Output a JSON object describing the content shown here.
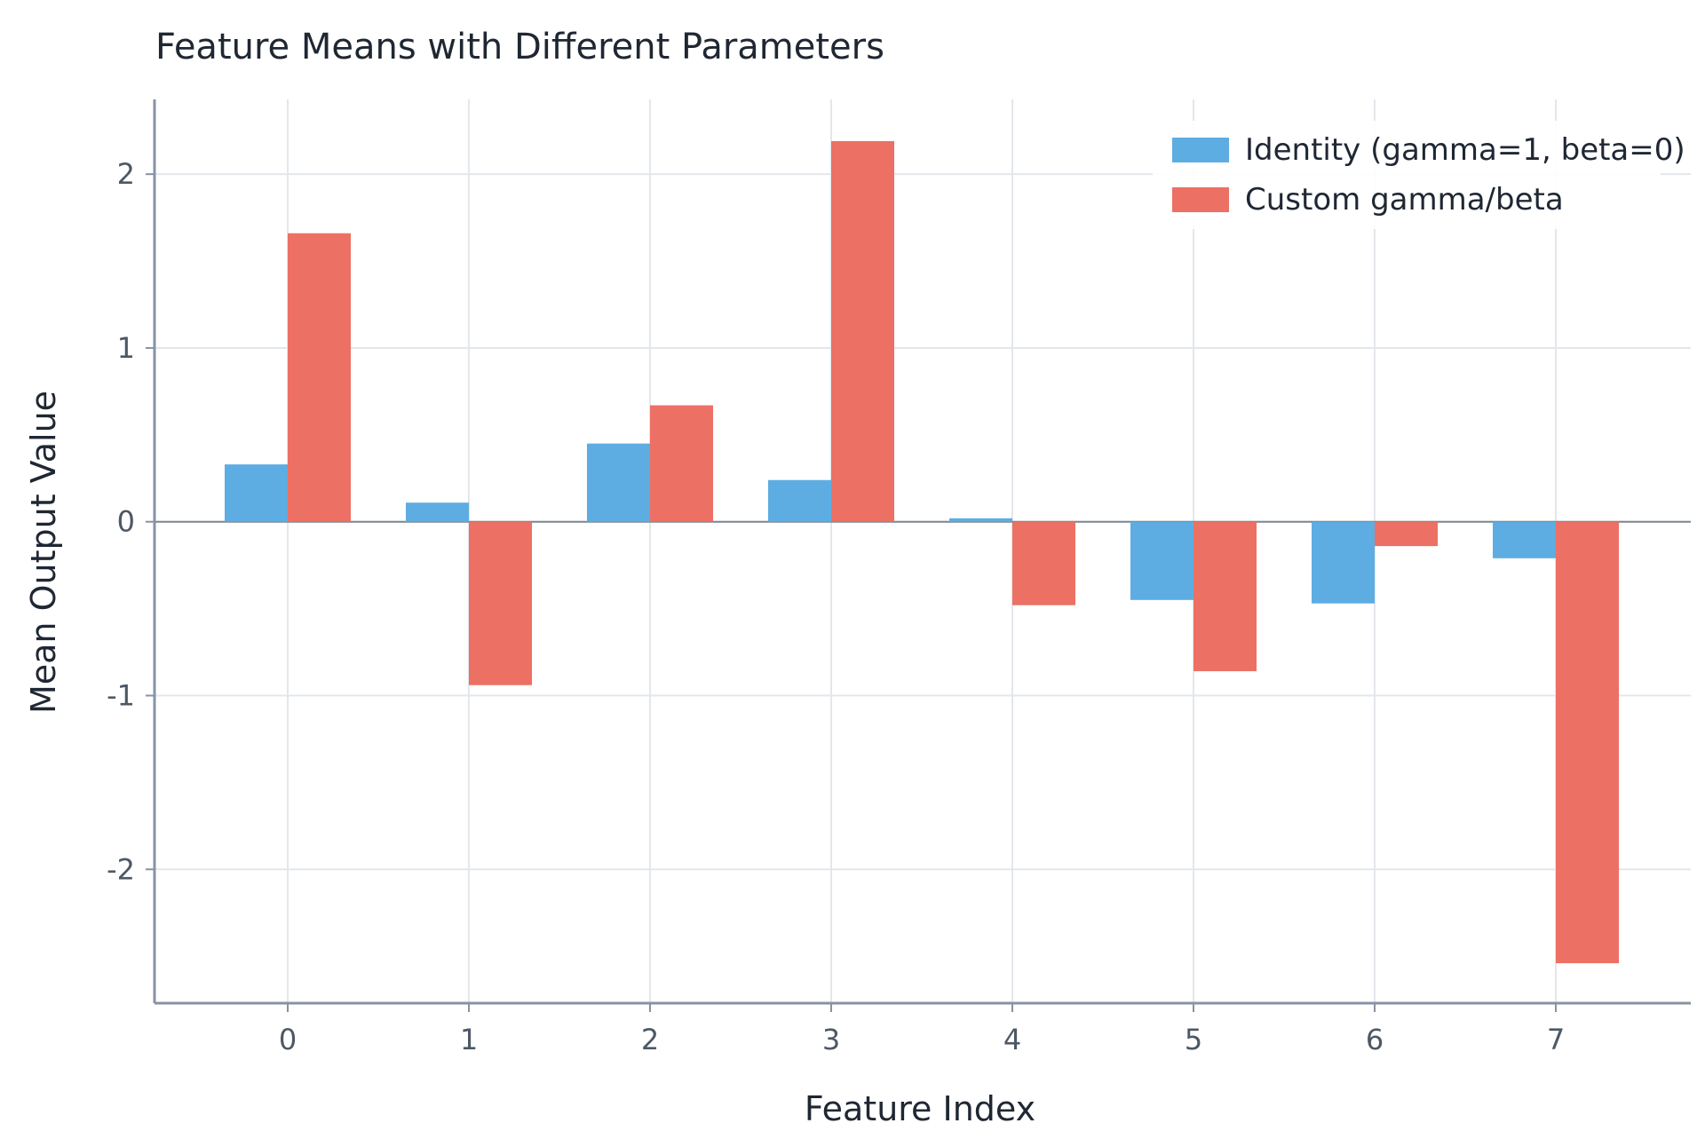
{
  "chart_data": {
    "type": "bar",
    "title": "Feature Means with Different Parameters",
    "xlabel": "Feature Index",
    "ylabel": "Mean Output Value",
    "categories": [
      "0",
      "1",
      "2",
      "3",
      "4",
      "5",
      "6",
      "7"
    ],
    "series": [
      {
        "name": "Identity (gamma=1, beta=0)",
        "color": "#5dade2",
        "values": [
          0.33,
          0.11,
          0.45,
          0.24,
          0.02,
          -0.45,
          -0.47,
          -0.21
        ]
      },
      {
        "name": "Custom gamma/beta",
        "color": "#ec7063",
        "values": [
          1.66,
          -0.94,
          0.67,
          2.19,
          -0.48,
          -0.86,
          -0.14,
          -2.54
        ]
      }
    ],
    "ylim": [
      -2.77,
      2.43
    ],
    "yticks": [
      "-2",
      "-1",
      "0",
      "1",
      "2"
    ],
    "grid": true,
    "legend_position": "top-right"
  }
}
